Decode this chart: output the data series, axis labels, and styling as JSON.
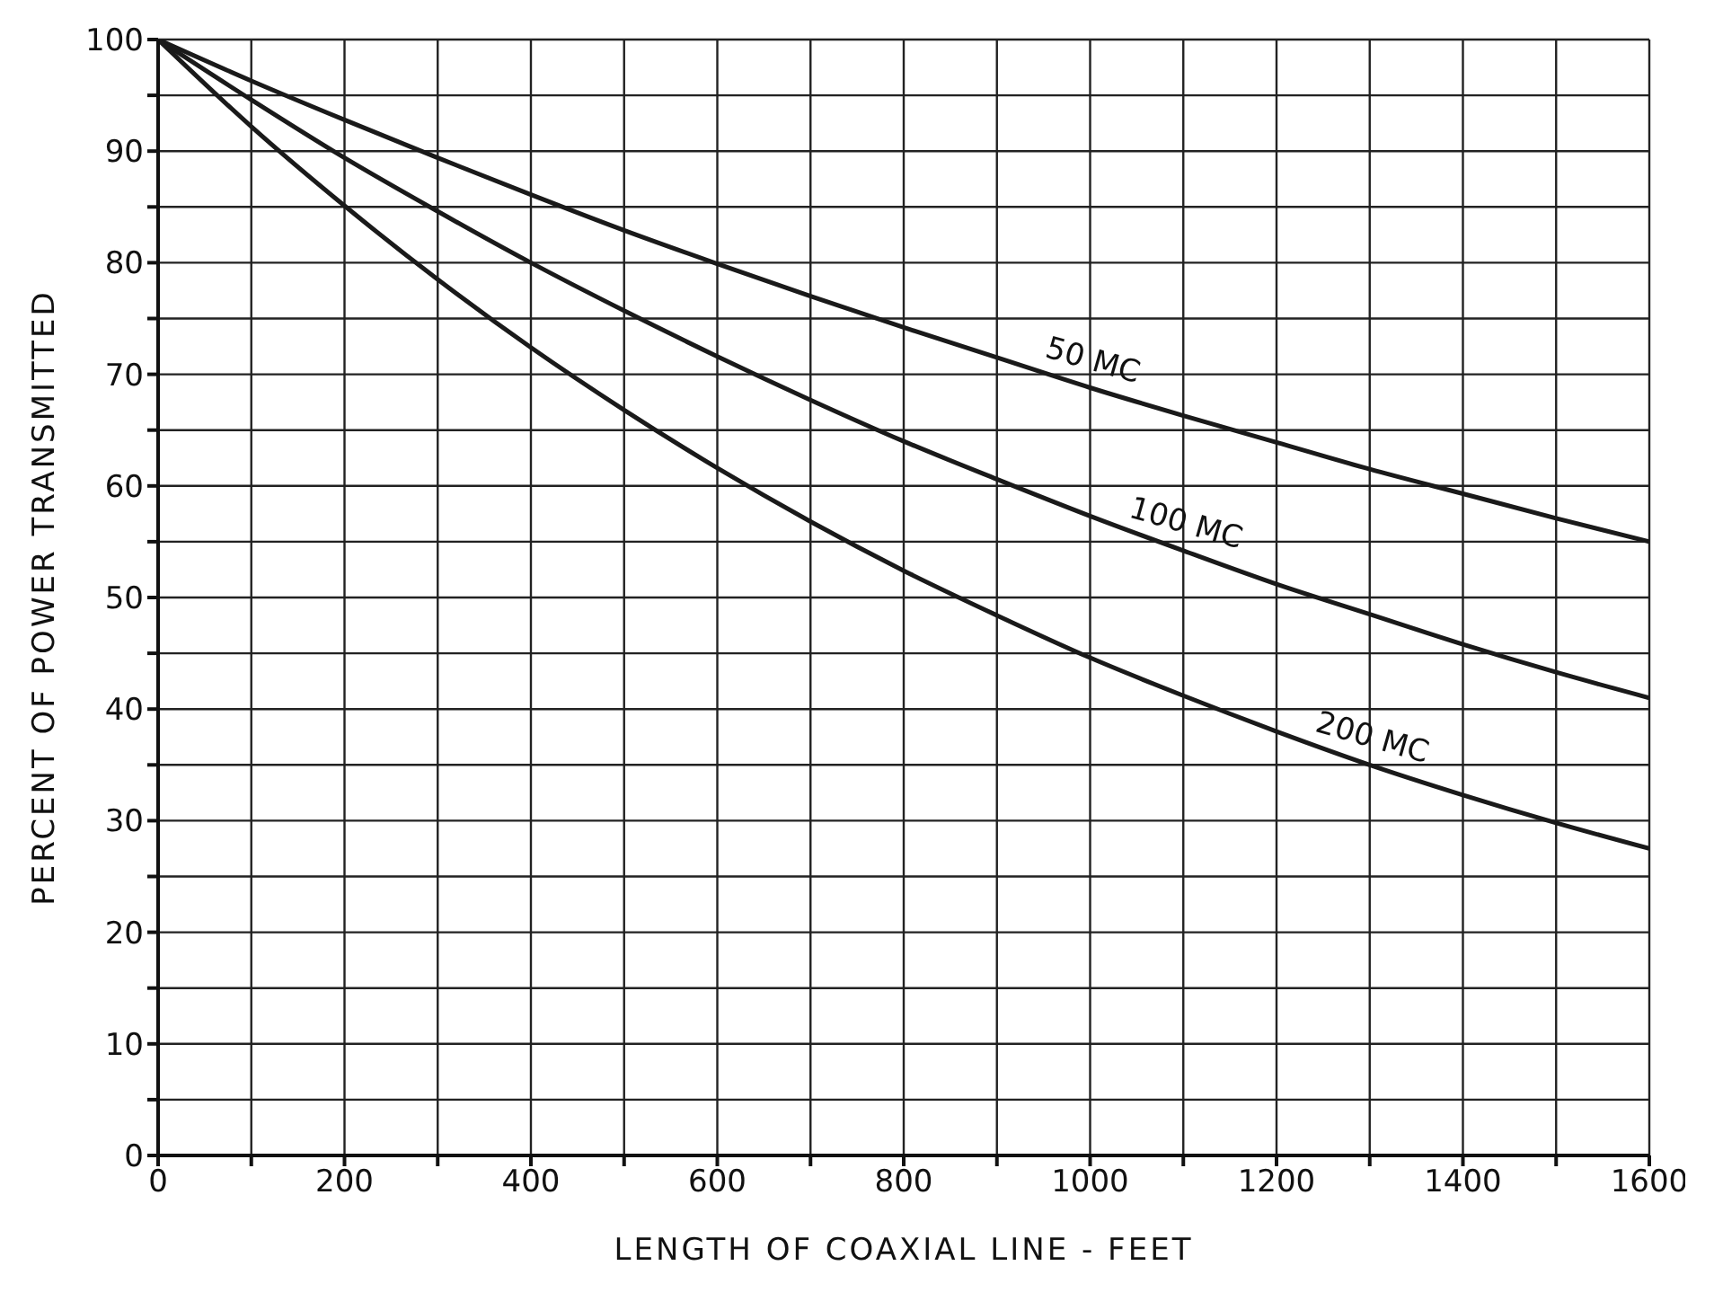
{
  "chart_data": {
    "type": "line",
    "xlabel": "LENGTH OF COAXIAL LINE - FEET",
    "ylabel": "PERCENT OF POWER TRANSMITTED",
    "x": [
      0,
      100,
      200,
      300,
      400,
      500,
      600,
      700,
      800,
      900,
      1000,
      1100,
      1200,
      1300,
      1400,
      1500,
      1600
    ],
    "series": [
      {
        "name": "50 MC",
        "color": "#1a1a1a",
        "values": [
          100,
          96.3,
          92.8,
          89.4,
          86.1,
          82.9,
          79.9,
          77,
          74.2,
          71.5,
          68.8,
          66.3,
          63.9,
          61.5,
          59.3,
          57.1,
          55
        ]
      },
      {
        "name": "100 MC",
        "color": "#1a1a1a",
        "values": [
          100,
          94.6,
          89.4,
          84.6,
          80,
          75.7,
          71.6,
          67.7,
          64,
          60.6,
          57.3,
          54.2,
          51.2,
          48.5,
          45.8,
          43.3,
          41
        ]
      },
      {
        "name": "200 MC",
        "color": "#1a1a1a",
        "values": [
          100,
          92.2,
          85.1,
          78.5,
          72.4,
          66.8,
          61.6,
          56.8,
          52.4,
          48.4,
          44.6,
          41.2,
          38,
          35,
          32.3,
          29.8,
          27.5
        ]
      }
    ],
    "xlim": [
      0,
      1600
    ],
    "ylim": [
      0,
      100
    ],
    "xticks": [
      0,
      {
        "value": 100,
        "label": null
      },
      200,
      {
        "value": 300,
        "label": null
      },
      400,
      {
        "value": 500,
        "label": null
      },
      600,
      {
        "value": 700,
        "label": null
      },
      800,
      {
        "value": 900,
        "label": null
      },
      1000,
      {
        "value": 1100,
        "label": null
      },
      1200,
      {
        "value": 1300,
        "label": null
      },
      1400,
      {
        "value": 1500,
        "label": null
      },
      1600
    ],
    "yticks": [
      0,
      {
        "value": 5,
        "label": null
      },
      10,
      {
        "value": 15,
        "label": null
      },
      20,
      {
        "value": 25,
        "label": null
      },
      30,
      {
        "value": 35,
        "label": null
      },
      40,
      {
        "value": 45,
        "label": null
      },
      50,
      {
        "value": 55,
        "label": null
      },
      60,
      {
        "value": 65,
        "label": null
      },
      70,
      {
        "value": 75,
        "label": null
      },
      80,
      {
        "value": 85,
        "label": null
      },
      90,
      {
        "value": 95,
        "label": null
      },
      100
    ],
    "grid": true,
    "marker": "none",
    "line_style": "solid"
  }
}
